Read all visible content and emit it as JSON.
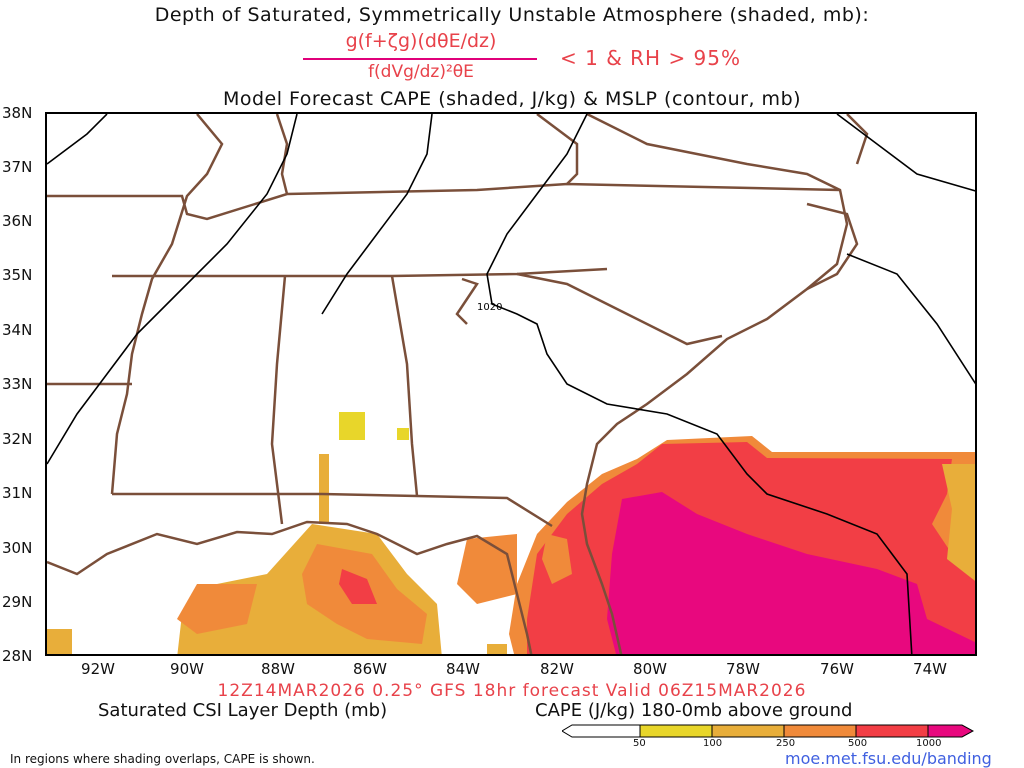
{
  "header": {
    "title_line1": "Depth of Saturated, Symmetrically Unstable Atmosphere (shaded, mb):",
    "formula_numerator": "g(f+ζg)(dθE/dz)",
    "formula_denominator": "f(dVg/dz)²θE",
    "condition": "< 1 & RH > 95%",
    "title_line3": "Model Forecast CAPE (shaded, J/kg) & MSLP (contour, mb)"
  },
  "map": {
    "lat_labels": [
      "38N",
      "37N",
      "36N",
      "35N",
      "34N",
      "33N",
      "32N",
      "31N",
      "30N",
      "29N",
      "28N"
    ],
    "lon_labels": [
      "92W",
      "90W",
      "88W",
      "86W",
      "84W",
      "82W",
      "80W",
      "78W",
      "76W",
      "74W"
    ],
    "isobar_label": "1020",
    "colors": {
      "border": "#7a4f3a",
      "cape_50": "#e8d62a",
      "cape_100": "#e8ae3a",
      "cape_250": "#f08a3a",
      "cape_500": "#f23e45",
      "cape_1000": "#e8087e"
    }
  },
  "footer": {
    "valid_line": "12Z14MAR2026 0.25° GFS 18hr forecast Valid 06Z15MAR2026",
    "left_label": "Saturated CSI Layer Depth (mb)",
    "right_label": "CAPE (J/kg) 180-0mb above ground",
    "note": "In regions where shading overlaps, CAPE is shown.",
    "url": "moe.met.fsu.edu/banding",
    "colorbar_ticks": [
      "50",
      "100",
      "250",
      "500",
      "1000"
    ]
  }
}
